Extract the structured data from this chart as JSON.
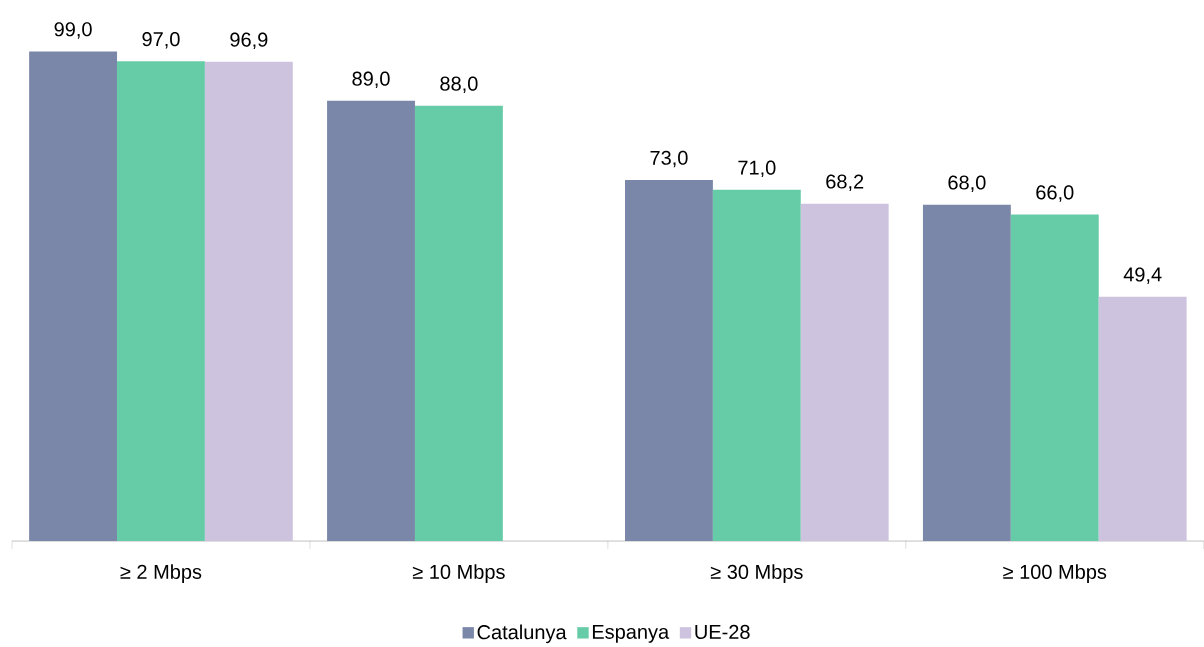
{
  "chart_data": {
    "type": "bar",
    "categories": [
      "≥ 2 Mbps",
      "≥ 10 Mbps",
      "≥ 30 Mbps",
      "≥ 100 Mbps"
    ],
    "series": [
      {
        "name": "Catalunya",
        "color": "#7b87a8",
        "values": [
          99.0,
          89.0,
          73.0,
          68.0
        ],
        "value_labels": [
          "99,0",
          "89,0",
          "73,0",
          "68,0"
        ]
      },
      {
        "name": "Espanya",
        "color": "#66cca8",
        "values": [
          97.0,
          88.0,
          71.0,
          66.0
        ],
        "value_labels": [
          "97,0",
          "88,0",
          "71,0",
          "66,0"
        ]
      },
      {
        "name": "UE-28",
        "color": "#cdc3de",
        "values": [
          96.9,
          null,
          68.2,
          49.4
        ],
        "value_labels": [
          "96,9",
          null,
          "68,2",
          "49,4"
        ]
      }
    ],
    "legend": "bottom",
    "grid": false
  }
}
